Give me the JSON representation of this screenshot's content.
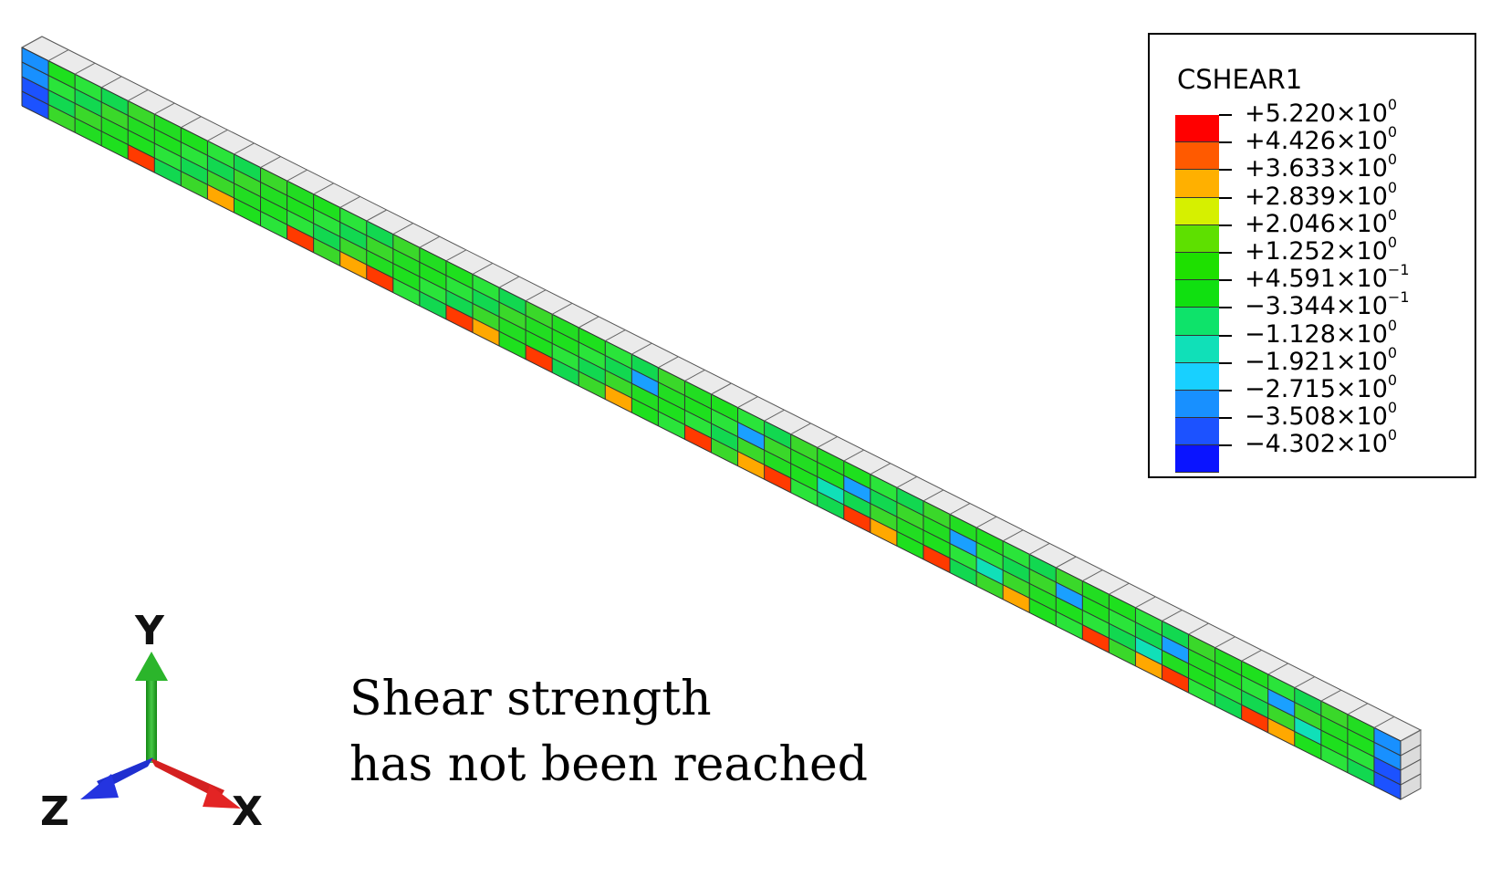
{
  "legend": {
    "title": "CSHEAR1",
    "bands": [
      "#ff0000",
      "#ff5a00",
      "#ffb000",
      "#d6f000",
      "#5ee000",
      "#1ee000",
      "#10e010",
      "#0ee36a",
      "#10e0b8",
      "#18d0ff",
      "#1890ff",
      "#1c52ff",
      "#0a14ff"
    ],
    "ticks": [
      {
        "sign": "+",
        "mantissa": "5.220",
        "exp": "0"
      },
      {
        "sign": "+",
        "mantissa": "4.426",
        "exp": "0"
      },
      {
        "sign": "+",
        "mantissa": "3.633",
        "exp": "0"
      },
      {
        "sign": "+",
        "mantissa": "2.839",
        "exp": "0"
      },
      {
        "sign": "+",
        "mantissa": "2.046",
        "exp": "0"
      },
      {
        "sign": "+",
        "mantissa": "1.252",
        "exp": "0"
      },
      {
        "sign": "+",
        "mantissa": "4.591",
        "exp": "−1"
      },
      {
        "sign": "−",
        "mantissa": "3.344",
        "exp": "−1"
      },
      {
        "sign": "−",
        "mantissa": "1.128",
        "exp": "0"
      },
      {
        "sign": "−",
        "mantissa": "1.921",
        "exp": "0"
      },
      {
        "sign": "−",
        "mantissa": "2.715",
        "exp": "0"
      },
      {
        "sign": "−",
        "mantissa": "3.508",
        "exp": "0"
      },
      {
        "sign": "−",
        "mantissa": "4.302",
        "exp": "0"
      }
    ]
  },
  "caption": {
    "line1": "Shear strength",
    "line2": "has not been reached"
  },
  "triad": {
    "y_label": "Y",
    "z_label": "Z",
    "x_label": "X",
    "y_color": "#1fa21f",
    "x_color": "#d42020",
    "z_color": "#1f2fd0"
  },
  "colors": {
    "mesh_top": "#ebebeb",
    "mesh_base": "#22dd22",
    "stress_high": "#ff3a00",
    "stress_low": "#1aa0ff"
  }
}
